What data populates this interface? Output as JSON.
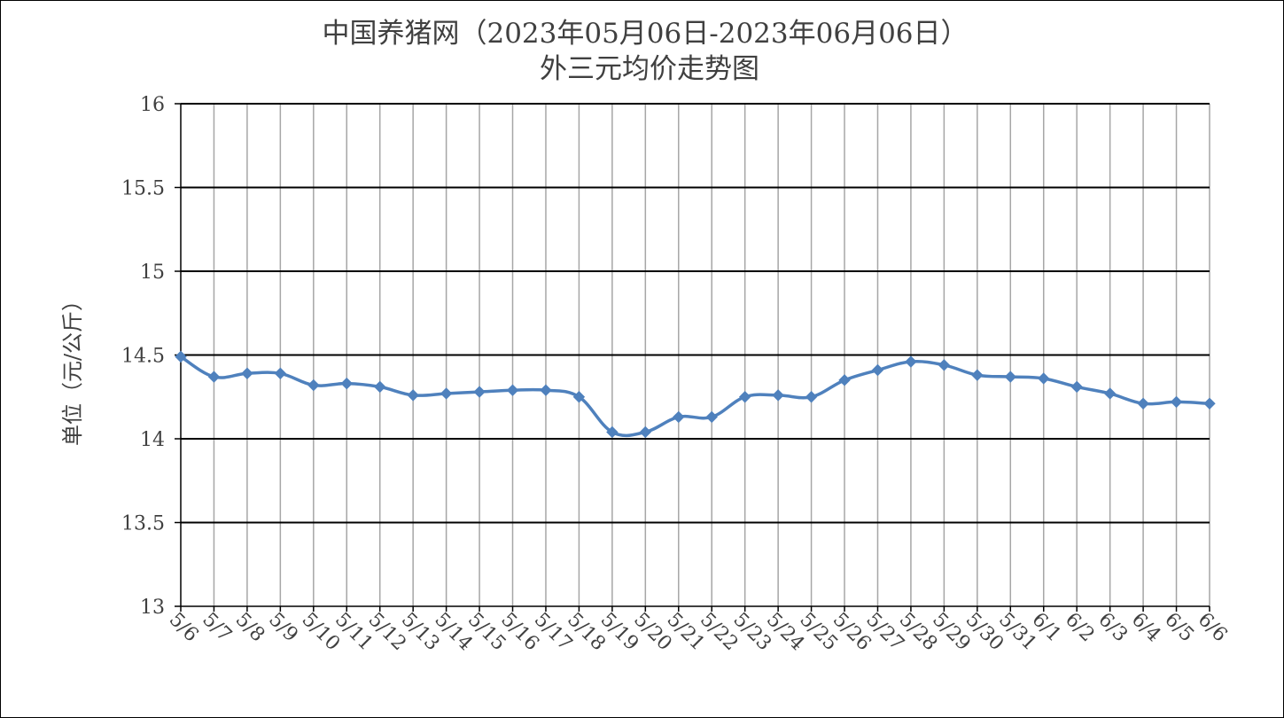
{
  "chart_data": {
    "type": "line",
    "title": "中国养猪网（2023年05月06日-2023年06月06日）",
    "subtitle": "外三元均价走势图",
    "ylabel": "单位（元/公斤）",
    "xlabel": "",
    "ylim": [
      13,
      16
    ],
    "yticks": [
      "13",
      "13.5",
      "14",
      "14.5",
      "15",
      "15.5",
      "16"
    ],
    "grid": true,
    "legend": "none",
    "line_color": "#4F81BD",
    "categories": [
      "5/6",
      "5/7",
      "5/8",
      "5/9",
      "5/10",
      "5/11",
      "5/12",
      "5/13",
      "5/14",
      "5/15",
      "5/16",
      "5/17",
      "5/18",
      "5/19",
      "5/20",
      "5/21",
      "5/22",
      "5/23",
      "5/24",
      "5/25",
      "5/26",
      "5/27",
      "5/28",
      "5/29",
      "5/30",
      "5/31",
      "6/1",
      "6/2",
      "6/3",
      "6/4",
      "6/5",
      "6/6"
    ],
    "series": [
      {
        "values": [
          14.49,
          14.37,
          14.39,
          14.39,
          14.32,
          14.33,
          14.31,
          14.26,
          14.27,
          14.28,
          14.29,
          14.29,
          14.25,
          14.04,
          14.04,
          14.13,
          14.13,
          14.25,
          14.26,
          14.25,
          14.35,
          14.41,
          14.46,
          14.44,
          14.38,
          14.37,
          14.36,
          14.31,
          14.27,
          14.21,
          14.22,
          14.21
        ]
      }
    ]
  }
}
